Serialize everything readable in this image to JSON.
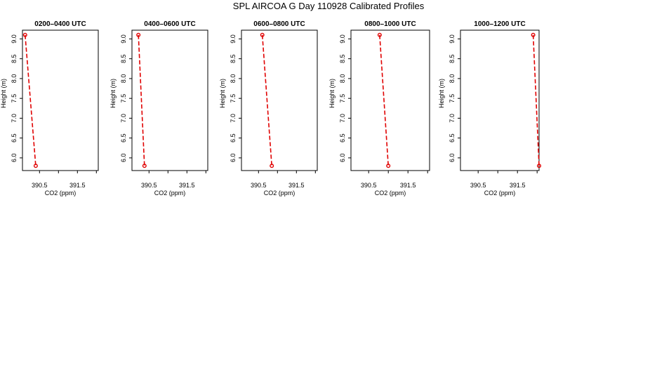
{
  "page": {
    "title": "SPL AIRCOA G  Day 110928  Calibrated Profiles"
  },
  "style": {
    "line_color": "#e00000",
    "marker_color": "#e00000",
    "axis_color": "#000000"
  },
  "chart_data": [
    {
      "type": "line",
      "title": "0200–0400 UTC",
      "xlabel": "CO2 (ppm)",
      "ylabel": "Height (m)",
      "xlim": [
        390.05,
        392.05
      ],
      "ylim": [
        5.68,
        9.22
      ],
      "xticks": [
        390.5,
        391.0,
        391.5,
        392.0
      ],
      "xtick_labels": [
        "390.5",
        "",
        "391.5",
        ""
      ],
      "yticks": [
        6.0,
        6.5,
        7.0,
        7.5,
        8.0,
        8.5,
        9.0
      ],
      "ytick_labels": [
        "6.0",
        "6.5",
        "7.0",
        "7.5",
        "8.0",
        "8.5",
        "9.0"
      ],
      "grid": false,
      "series": [
        {
          "x": [
            390.12,
            390.4
          ],
          "y": [
            9.1,
            5.8
          ]
        }
      ]
    },
    {
      "type": "line",
      "title": "0400–0600 UTC",
      "xlabel": "CO2 (ppm)",
      "ylabel": "Height (m)",
      "xlim": [
        390.05,
        392.05
      ],
      "ylim": [
        5.68,
        9.22
      ],
      "xticks": [
        390.5,
        391.0,
        391.5,
        392.0
      ],
      "xtick_labels": [
        "390.5",
        "",
        "391.5",
        ""
      ],
      "yticks": [
        6.0,
        6.5,
        7.0,
        7.5,
        8.0,
        8.5,
        9.0
      ],
      "ytick_labels": [
        "6.0",
        "6.5",
        "7.0",
        "7.5",
        "8.0",
        "8.5",
        "9.0"
      ],
      "grid": false,
      "series": [
        {
          "x": [
            390.22,
            390.38
          ],
          "y": [
            9.1,
            5.8
          ]
        }
      ]
    },
    {
      "type": "line",
      "title": "0600–0800 UTC",
      "xlabel": "CO2 (ppm)",
      "ylabel": "Height (m)",
      "xlim": [
        390.05,
        392.05
      ],
      "ylim": [
        5.68,
        9.22
      ],
      "xticks": [
        390.5,
        391.0,
        391.5,
        392.0
      ],
      "xtick_labels": [
        "390.5",
        "",
        "391.5",
        ""
      ],
      "yticks": [
        6.0,
        6.5,
        7.0,
        7.5,
        8.0,
        8.5,
        9.0
      ],
      "ytick_labels": [
        "6.0",
        "6.5",
        "7.0",
        "7.5",
        "8.0",
        "8.5",
        "9.0"
      ],
      "grid": false,
      "series": [
        {
          "x": [
            390.6,
            390.85
          ],
          "y": [
            9.1,
            5.8
          ]
        }
      ]
    },
    {
      "type": "line",
      "title": "0800–1000 UTC",
      "xlabel": "CO2 (ppm)",
      "ylabel": "Height (m)",
      "xlim": [
        390.05,
        392.05
      ],
      "ylim": [
        5.68,
        9.22
      ],
      "xticks": [
        390.5,
        391.0,
        391.5,
        392.0
      ],
      "xtick_labels": [
        "390.5",
        "",
        "391.5",
        ""
      ],
      "yticks": [
        6.0,
        6.5,
        7.0,
        7.5,
        8.0,
        8.5,
        9.0
      ],
      "ytick_labels": [
        "6.0",
        "6.5",
        "7.0",
        "7.5",
        "8.0",
        "8.5",
        "9.0"
      ],
      "grid": false,
      "series": [
        {
          "x": [
            390.78,
            391.0
          ],
          "y": [
            9.1,
            5.8
          ]
        }
      ]
    },
    {
      "type": "line",
      "title": "1000–1200 UTC",
      "xlabel": "CO2 (ppm)",
      "ylabel": "Height (m)",
      "xlim": [
        390.05,
        392.05
      ],
      "ylim": [
        5.68,
        9.22
      ],
      "xticks": [
        390.5,
        391.0,
        391.5,
        392.0
      ],
      "xtick_labels": [
        "390.5",
        "",
        "391.5",
        ""
      ],
      "yticks": [
        6.0,
        6.5,
        7.0,
        7.5,
        8.0,
        8.5,
        9.0
      ],
      "ytick_labels": [
        "6.0",
        "6.5",
        "7.0",
        "7.5",
        "8.0",
        "8.5",
        "9.0"
      ],
      "grid": false,
      "series": [
        {
          "x": [
            391.9,
            392.05
          ],
          "y": [
            9.1,
            5.8
          ]
        }
      ]
    }
  ]
}
